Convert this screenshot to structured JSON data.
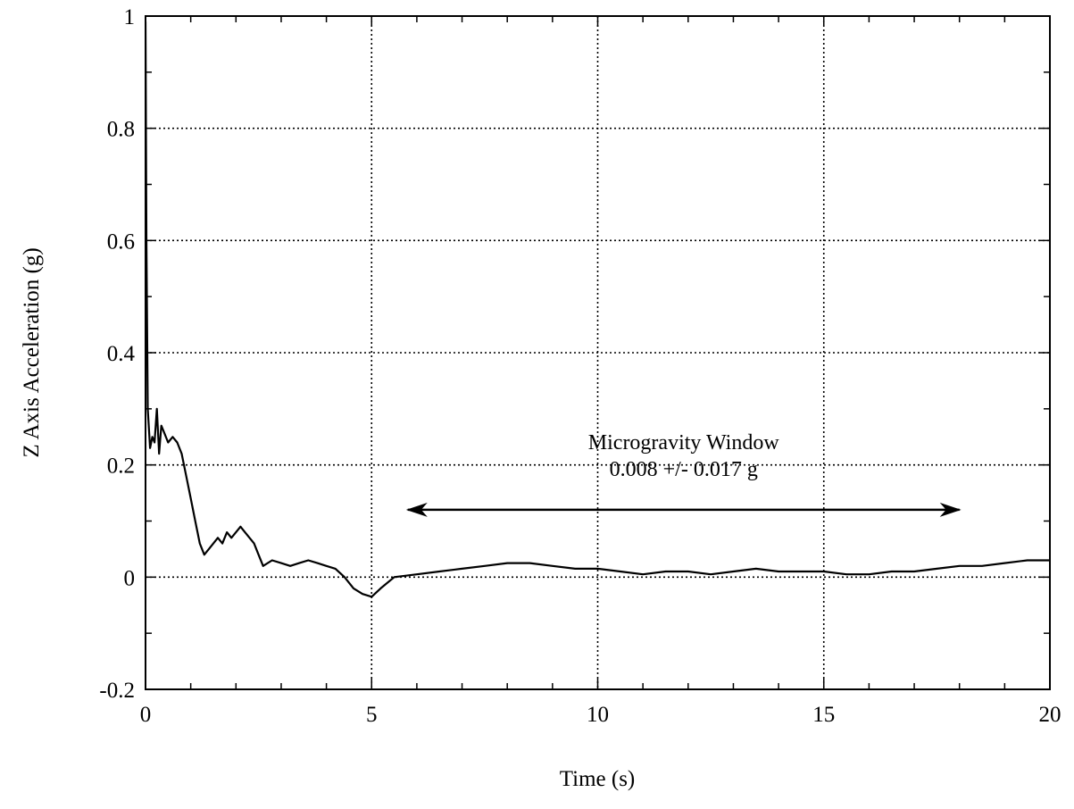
{
  "chart_data": {
    "type": "line",
    "title": "",
    "xlabel": "Time (s)",
    "ylabel": "Z Axis Acceleration (g)",
    "xlim": [
      0,
      20
    ],
    "ylim": [
      -0.2,
      1
    ],
    "x_ticks": [
      0,
      5,
      10,
      15,
      20
    ],
    "x_tick_labels": [
      "0",
      "5",
      "10",
      "15",
      "20"
    ],
    "y_ticks": [
      -0.2,
      0,
      0.2,
      0.4,
      0.6,
      0.8,
      1
    ],
    "y_tick_labels": [
      "-0.2",
      "0",
      "0.2",
      "0.4",
      "0.6",
      "0.8",
      "1"
    ],
    "grid": true,
    "line_color": "#000000",
    "series": [
      {
        "x": [
          0,
          0.02,
          0.05,
          0.1,
          0.15,
          0.2,
          0.25,
          0.3,
          0.35,
          0.4,
          0.5,
          0.6,
          0.7,
          0.8,
          0.9,
          1.0,
          1.1,
          1.2,
          1.3,
          1.4,
          1.5,
          1.6,
          1.7,
          1.8,
          1.9,
          2.0,
          2.1,
          2.2,
          2.3,
          2.4,
          2.5,
          2.6,
          2.8,
          3.0,
          3.2,
          3.4,
          3.6,
          3.8,
          4.0,
          4.2,
          4.4,
          4.6,
          4.8,
          5.0,
          5.2,
          5.5,
          6.0,
          6.5,
          7.0,
          7.5,
          8.0,
          8.5,
          9.0,
          9.5,
          10.0,
          10.5,
          11.0,
          11.5,
          12.0,
          12.5,
          13.0,
          13.5,
          14.0,
          14.5,
          15.0,
          15.5,
          16.0,
          16.5,
          17.0,
          17.5,
          18.0,
          18.5,
          19.0,
          19.5,
          20.0
        ],
        "y": [
          0.99,
          0.6,
          0.3,
          0.23,
          0.25,
          0.24,
          0.3,
          0.22,
          0.27,
          0.26,
          0.24,
          0.25,
          0.24,
          0.22,
          0.18,
          0.14,
          0.1,
          0.06,
          0.04,
          0.05,
          0.06,
          0.07,
          0.06,
          0.08,
          0.07,
          0.08,
          0.09,
          0.08,
          0.07,
          0.06,
          0.04,
          0.02,
          0.03,
          0.025,
          0.02,
          0.025,
          0.03,
          0.025,
          0.02,
          0.015,
          0.0,
          -0.02,
          -0.03,
          -0.035,
          -0.02,
          0.0,
          0.005,
          0.01,
          0.015,
          0.02,
          0.025,
          0.025,
          0.02,
          0.015,
          0.015,
          0.01,
          0.005,
          0.01,
          0.01,
          0.005,
          0.01,
          0.015,
          0.01,
          0.01,
          0.01,
          0.005,
          0.005,
          0.01,
          0.01,
          0.015,
          0.02,
          0.02,
          0.025,
          0.03,
          0.03
        ]
      }
    ],
    "annotations": [
      {
        "text_line1": "Microgravity Window",
        "text_line2": "0.008 +/- 0.017 g",
        "arrow_from_x": 5.8,
        "arrow_to_x": 18.0,
        "arrow_y": 0.12
      }
    ]
  }
}
